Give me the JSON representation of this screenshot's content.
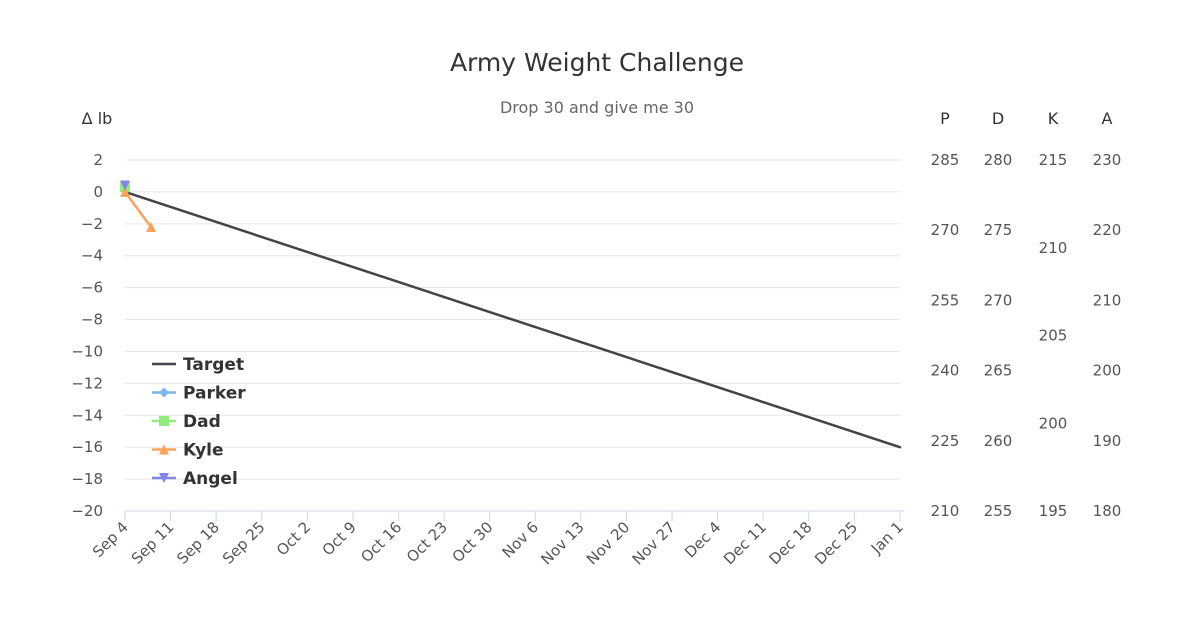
{
  "chart_data": {
    "type": "line",
    "title": "Army Weight Challenge",
    "subtitle": "Drop 30 and give me 30",
    "left_axis": {
      "title": "Δ lb",
      "ylim": [
        -20,
        2
      ],
      "ticks": [
        "2",
        "0",
        "−2",
        "−4",
        "−6",
        "−8",
        "−10",
        "−12",
        "−14",
        "−16",
        "−18",
        "−20"
      ],
      "tick_values": [
        2,
        0,
        -2,
        -4,
        -6,
        -8,
        -10,
        -12,
        -14,
        -16,
        -18,
        -20
      ]
    },
    "x_axis": {
      "type": "date",
      "xlim": [
        "2023-09-04",
        "2024-01-01"
      ],
      "ticks": [
        "Sep 4",
        "Sep 11",
        "Sep 18",
        "Sep 25",
        "Oct 2",
        "Oct 9",
        "Oct 16",
        "Oct 23",
        "Oct 30",
        "Nov 6",
        "Nov 13",
        "Nov 20",
        "Nov 27",
        "Dec 4",
        "Dec 11",
        "Dec 18",
        "Dec 25",
        "Jan 1"
      ]
    },
    "right_axes": [
      {
        "title": "P",
        "color": "#7cb5ec",
        "ylim": [
          210,
          285
        ],
        "ticks": [
          "285",
          "270",
          "255",
          "240",
          "225",
          "210"
        ]
      },
      {
        "title": "D",
        "color": "#90ed7d",
        "ylim": [
          255,
          280
        ],
        "ticks": [
          "280",
          "275",
          "270",
          "265",
          "260",
          "255"
        ]
      },
      {
        "title": "K",
        "color": "#f7a35c",
        "ylim": [
          195,
          215
        ],
        "ticks": [
          "215",
          "210",
          "205",
          "200",
          "195"
        ]
      },
      {
        "title": "A",
        "color": "#8085e9",
        "ylim": [
          180,
          230
        ],
        "ticks": [
          "230",
          "220",
          "210",
          "200",
          "190",
          "180"
        ]
      }
    ],
    "series": [
      {
        "name": "Target",
        "color": "#434348",
        "marker": "none",
        "points": [
          {
            "x": "2023-09-04",
            "y": 0
          },
          {
            "x": "2024-01-01",
            "y": -16
          }
        ]
      },
      {
        "name": "Parker",
        "color": "#7cb5ec",
        "marker": "diamond",
        "points": [
          {
            "x": "2023-09-04",
            "y": 0.3
          }
        ]
      },
      {
        "name": "Dad",
        "color": "#90ed7d",
        "marker": "square",
        "points": [
          {
            "x": "2023-09-04",
            "y": 0.3
          }
        ]
      },
      {
        "name": "Kyle",
        "color": "#f7a35c",
        "marker": "triangle",
        "points": [
          {
            "x": "2023-09-04",
            "y": 0
          },
          {
            "x": "2023-09-08",
            "y": -2.2
          }
        ]
      },
      {
        "name": "Angel",
        "color": "#8085e9",
        "marker": "triangle-down",
        "points": [
          {
            "x": "2023-09-04",
            "y": 0.4
          }
        ]
      }
    ],
    "grid": true,
    "legend": "bottom-left"
  }
}
